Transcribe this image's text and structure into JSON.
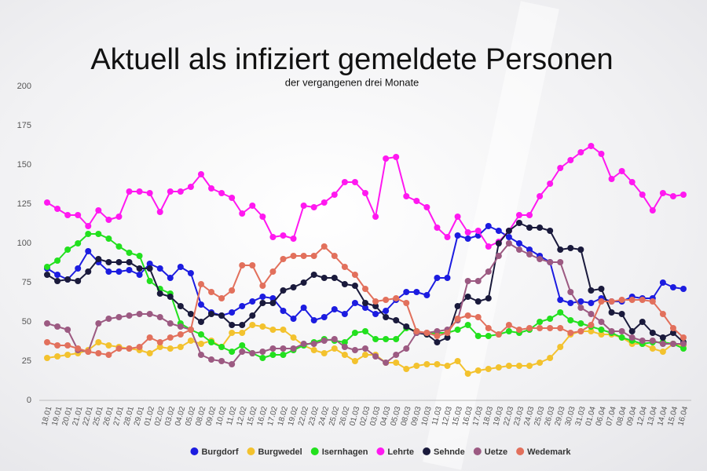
{
  "chart_data": {
    "type": "line",
    "title": "Aktuell als infiziert gemeldete Personen",
    "subtitle": "der vergangenen drei Monate",
    "categories": [
      "18.01",
      "19.01",
      "20.01",
      "21.01",
      "22.01",
      "25.01",
      "26.01",
      "27.01",
      "28.01",
      "29.01",
      "01.02",
      "02.02",
      "03.02",
      "04.02",
      "05.02",
      "08.02",
      "09.02",
      "10.02",
      "11.02",
      "12.02",
      "15.02",
      "16.02",
      "17.02",
      "18.02",
      "19.02",
      "22.02",
      "23.02",
      "24.02",
      "25.02",
      "26.02",
      "01.03",
      "02.03",
      "03.03",
      "04.03",
      "05.03",
      "08.03",
      "09.03",
      "10.03",
      "11.03",
      "12.03",
      "15.03",
      "16.03",
      "17.03",
      "18.03",
      "19.03",
      "22.03",
      "23.03",
      "24.03",
      "25.03",
      "26.03",
      "29.03",
      "30.03",
      "31.03",
      "01.04",
      "06.04",
      "07.04",
      "08.04",
      "09.04",
      "12.04",
      "13.04",
      "14.04",
      "15.04",
      "16.04"
    ],
    "series": [
      {
        "name": "Burgdorf",
        "color": "#1c1ce0",
        "values": [
          84,
          80,
          77,
          84,
          95,
          88,
          82,
          82,
          83,
          80,
          87,
          84,
          78,
          85,
          81,
          61,
          56,
          54,
          56,
          60,
          63,
          66,
          65,
          57,
          52,
          59,
          51,
          53,
          58,
          55,
          62,
          59,
          55,
          57,
          64,
          69,
          69,
          67,
          78,
          78,
          105,
          103,
          105,
          111,
          108,
          104,
          100,
          96,
          92,
          88,
          64,
          62,
          63,
          62,
          65,
          63,
          63,
          66,
          65,
          65,
          75,
          72,
          71
        ]
      },
      {
        "name": "Burgwedel",
        "color": "#f3c22e",
        "values": [
          27,
          28,
          29,
          30,
          32,
          37,
          35,
          34,
          33,
          32,
          30,
          34,
          33,
          34,
          38,
          36,
          38,
          34,
          43,
          43,
          48,
          47,
          45,
          45,
          40,
          35,
          32,
          30,
          33,
          29,
          25,
          29,
          29,
          24,
          24,
          20,
          22,
          23,
          23,
          22,
          25,
          17,
          19,
          20,
          21,
          22,
          22,
          22,
          24,
          27,
          34,
          42,
          44,
          44,
          42,
          42,
          40,
          36,
          36,
          33,
          31,
          36,
          35
        ]
      },
      {
        "name": "Isernhagen",
        "color": "#22e01e",
        "values": [
          85,
          89,
          96,
          100,
          106,
          106,
          103,
          98,
          94,
          92,
          76,
          71,
          68,
          49,
          45,
          42,
          37,
          34,
          31,
          35,
          30,
          27,
          29,
          29,
          32,
          35,
          37,
          39,
          38,
          37,
          43,
          44,
          39,
          39,
          39,
          46,
          44,
          42,
          43,
          43,
          45,
          48,
          41,
          41,
          42,
          44,
          43,
          45,
          50,
          52,
          56,
          51,
          49,
          47,
          45,
          43,
          40,
          38,
          36,
          37,
          37,
          36,
          33
        ]
      },
      {
        "name": "Lehrte",
        "color": "#ff18f0",
        "values": [
          126,
          122,
          118,
          118,
          111,
          121,
          115,
          117,
          133,
          133,
          132,
          120,
          133,
          133,
          136,
          144,
          135,
          132,
          129,
          119,
          124,
          117,
          104,
          105,
          103,
          124,
          123,
          126,
          131,
          139,
          139,
          132,
          117,
          154,
          155,
          130,
          127,
          123,
          110,
          104,
          117,
          107,
          108,
          98,
          101,
          108,
          118,
          118,
          130,
          138,
          148,
          153,
          158,
          162,
          157,
          141,
          146,
          139,
          131,
          121,
          132,
          130,
          131
        ]
      },
      {
        "name": "Sehnde",
        "color": "#1a1a3c",
        "values": [
          80,
          76,
          77,
          76,
          82,
          90,
          88,
          88,
          88,
          84,
          84,
          68,
          66,
          60,
          55,
          50,
          55,
          54,
          48,
          48,
          54,
          62,
          62,
          70,
          72,
          75,
          80,
          78,
          78,
          74,
          73,
          62,
          60,
          53,
          51,
          47,
          43,
          42,
          37,
          40,
          60,
          66,
          63,
          65,
          100,
          108,
          113,
          110,
          110,
          108,
          96,
          97,
          96,
          70,
          71,
          56,
          55,
          44,
          50,
          43,
          40,
          43,
          37
        ]
      },
      {
        "name": "Uetze",
        "color": "#9c5a82",
        "values": [
          49,
          47,
          45,
          32,
          31,
          49,
          52,
          53,
          54,
          55,
          55,
          53,
          49,
          47,
          45,
          29,
          26,
          25,
          23,
          31,
          30,
          31,
          33,
          33,
          33,
          36,
          36,
          38,
          39,
          34,
          32,
          33,
          28,
          24,
          29,
          33,
          43,
          43,
          44,
          45,
          51,
          76,
          76,
          82,
          92,
          100,
          96,
          93,
          90,
          88,
          88,
          69,
          59,
          55,
          50,
          44,
          44,
          40,
          38,
          38,
          36,
          36,
          36
        ]
      },
      {
        "name": "Wedemark",
        "color": "#e2705c",
        "values": [
          37,
          35,
          35,
          33,
          31,
          30,
          29,
          33,
          33,
          34,
          40,
          37,
          40,
          42,
          45,
          74,
          69,
          65,
          70,
          86,
          86,
          73,
          82,
          90,
          92,
          92,
          92,
          98,
          92,
          85,
          80,
          71,
          63,
          64,
          65,
          62,
          44,
          43,
          41,
          43,
          52,
          54,
          53,
          46,
          42,
          48,
          45,
          46,
          46,
          46,
          46,
          43,
          44,
          48,
          63,
          63,
          64,
          64,
          64,
          63,
          55,
          46,
          40
        ]
      }
    ],
    "ylim": [
      0,
      200
    ],
    "yticks": [
      0,
      25,
      50,
      75,
      100,
      125,
      150,
      175,
      200
    ],
    "grid": false,
    "legend": "bottom"
  }
}
